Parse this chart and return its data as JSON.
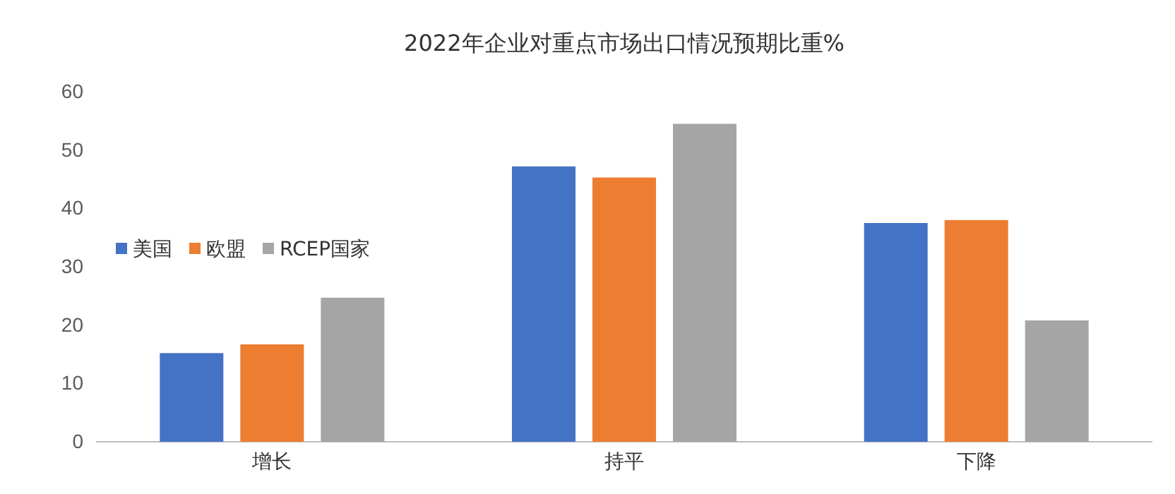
{
  "chart_data": {
    "type": "bar",
    "title": "2022年企业对重点市场出口情况预期比重%",
    "categories": [
      "增长",
      "持平",
      "下降"
    ],
    "series": [
      {
        "name": "美国",
        "color": "#4472c4",
        "values": [
          15.2,
          47.2,
          37.5
        ]
      },
      {
        "name": "欧盟",
        "color": "#ed7d31",
        "values": [
          16.7,
          45.3,
          38.0
        ]
      },
      {
        "name": "RCEP国家",
        "color": "#a5a5a5",
        "values": [
          24.7,
          54.5,
          20.8
        ]
      }
    ],
    "ylim": [
      0,
      60
    ],
    "yticks": [
      0,
      10,
      20,
      30,
      40,
      50,
      60
    ],
    "grid": false,
    "legend": "left"
  }
}
